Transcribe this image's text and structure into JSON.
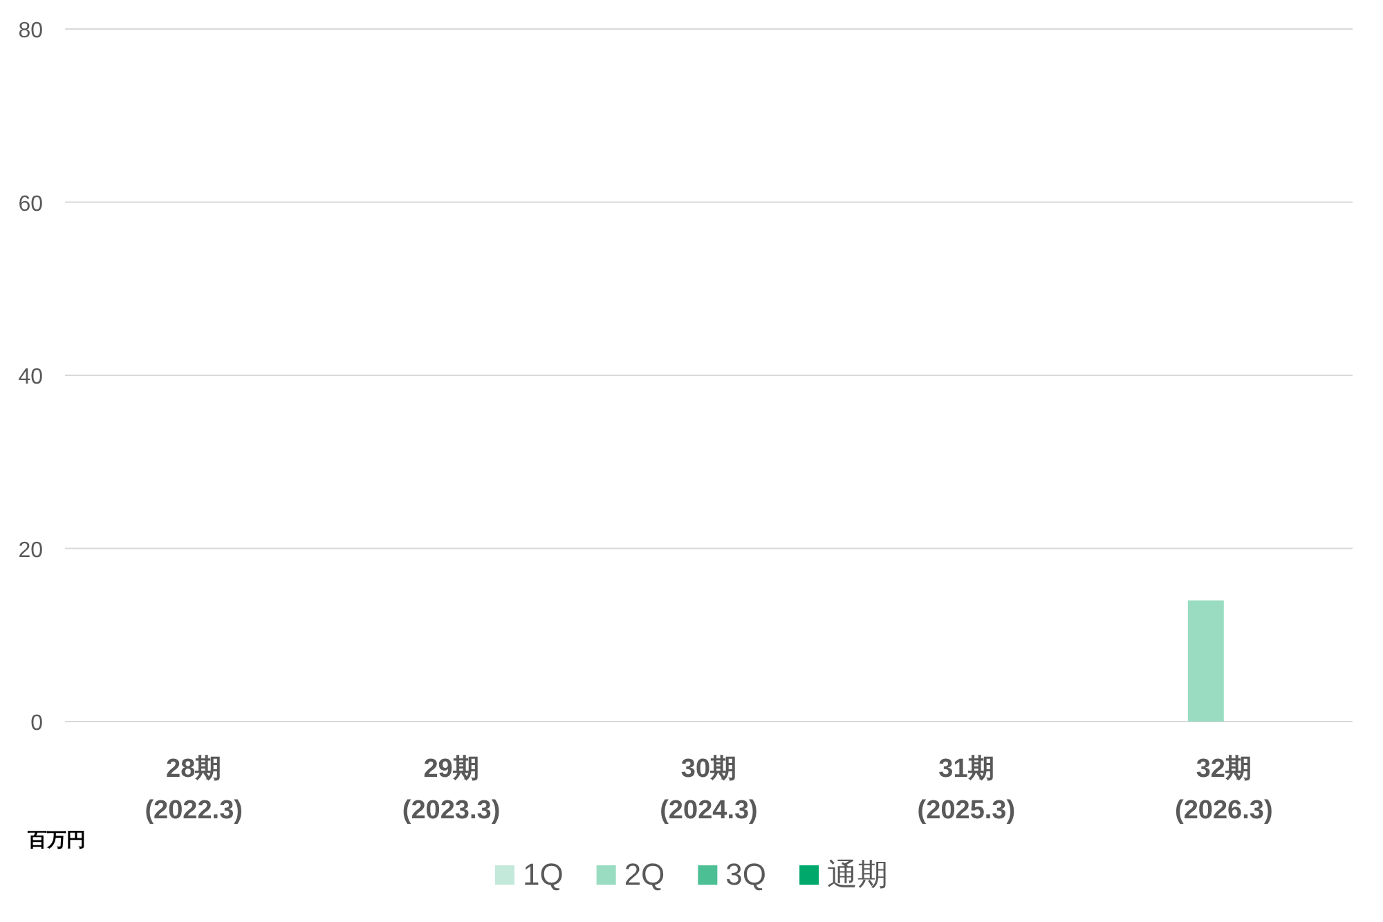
{
  "chart_data": {
    "type": "bar",
    "ylabel": "百万円",
    "categories": [
      "28期\n(2022.3)",
      "29期\n(2023.3)",
      "30期\n(2024.3)",
      "31期\n(2025.3)",
      "32期\n(2026.3)"
    ],
    "series": [
      {
        "name": "1Q",
        "color": "#c3e9da",
        "values": [
          null,
          null,
          null,
          null,
          null
        ]
      },
      {
        "name": "2Q",
        "color": "#99dcc2",
        "values": [
          null,
          null,
          null,
          null,
          14
        ]
      },
      {
        "name": "3Q",
        "color": "#4dbf95",
        "values": [
          null,
          null,
          null,
          null,
          null
        ]
      },
      {
        "name": "通期",
        "color": "#00a86b",
        "values": [
          null,
          null,
          null,
          null,
          null
        ]
      }
    ],
    "ylim": [
      0,
      80
    ],
    "yticks": [
      0,
      20,
      40,
      60,
      80
    ],
    "grid": "y",
    "legend": "bottom"
  }
}
